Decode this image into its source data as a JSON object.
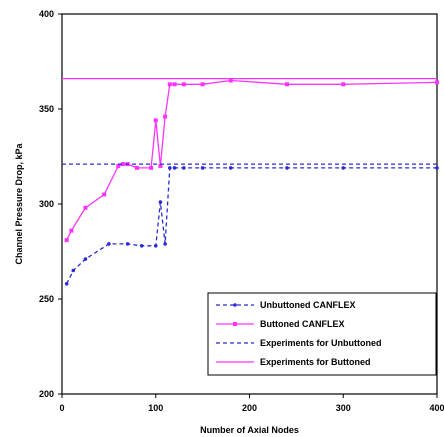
{
  "chart_data": {
    "type": "line",
    "xlabel": "Number of Axial Nodes",
    "ylabel": "Channel Pressure Drop, kPa",
    "xlim": [
      0,
      400
    ],
    "ylim": [
      200,
      400
    ],
    "x_ticks": [
      0,
      100,
      200,
      300,
      400
    ],
    "y_ticks": [
      200,
      250,
      300,
      350,
      400
    ],
    "grid": false,
    "legend_position": "bottom-right",
    "series": [
      {
        "name": "Unbuttoned CANFLEX",
        "color": "#2b2bd6",
        "style": "dashed",
        "marker": "dot",
        "x": [
          5,
          12,
          25,
          50,
          70,
          85,
          100,
          105,
          110,
          115,
          120,
          130,
          150,
          180,
          240,
          300,
          400
        ],
        "y": [
          258,
          265,
          271,
          279,
          279,
          278,
          278,
          301,
          279,
          319,
          319,
          319,
          319,
          319,
          319,
          319,
          319
        ]
      },
      {
        "name": "Buttoned CANFLEX",
        "color": "#ff33ff",
        "style": "solid",
        "marker": "square",
        "x": [
          5,
          10,
          25,
          45,
          60,
          65,
          70,
          80,
          95,
          100,
          105,
          110,
          115,
          120,
          130,
          150,
          180,
          240,
          300,
          400
        ],
        "y": [
          281,
          286,
          298,
          305,
          320,
          321,
          321,
          319,
          319,
          344,
          320,
          346,
          363,
          363,
          363,
          363,
          365,
          363,
          363,
          364
        ]
      },
      {
        "name": "Experiments for Unbuttoned",
        "color": "#2b2bd6",
        "style": "dashed",
        "marker": "none",
        "x": [
          0,
          400
        ],
        "y": [
          321,
          321
        ]
      },
      {
        "name": "Experiments for Buttoned",
        "color": "#ff33ff",
        "style": "solid",
        "marker": "none",
        "x": [
          0,
          400
        ],
        "y": [
          366,
          366
        ]
      }
    ]
  }
}
